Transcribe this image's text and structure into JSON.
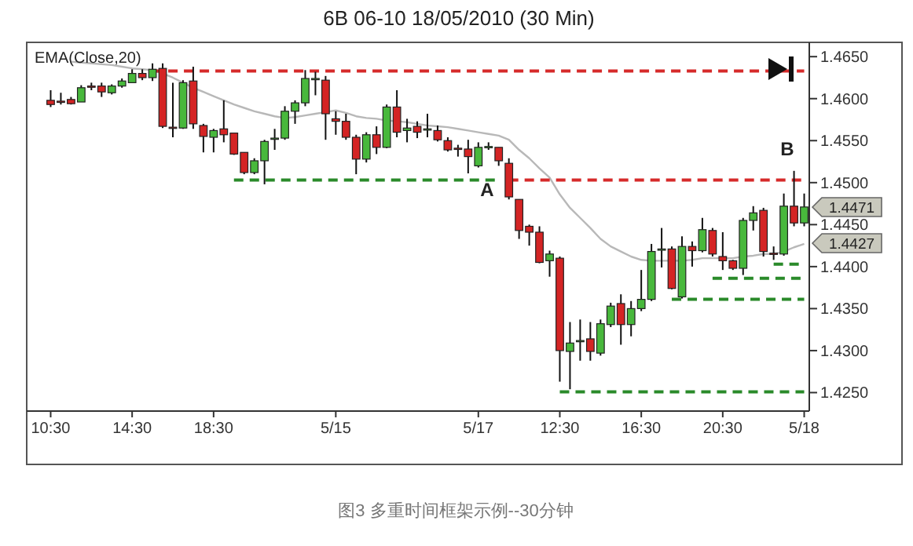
{
  "chart_data": {
    "type": "candlestick",
    "title": "6B 06-10  18/05/2010 (30 Min)",
    "categories": [
      "10:30",
      null,
      null,
      null,
      null,
      null,
      null,
      null,
      "14:30",
      null,
      null,
      null,
      null,
      null,
      null,
      null,
      "18:30",
      null,
      null,
      null,
      null,
      null,
      null,
      null,
      null,
      null,
      null,
      null,
      "5/15",
      null,
      null,
      null,
      null,
      null,
      null,
      null,
      null,
      null,
      null,
      null,
      null,
      null,
      "5/17",
      null,
      null,
      null,
      null,
      null,
      null,
      null,
      "12:30",
      null,
      null,
      null,
      null,
      null,
      null,
      null,
      "16:30",
      null,
      null,
      null,
      null,
      null,
      null,
      null,
      "20:30",
      null,
      null,
      null,
      null,
      null,
      null,
      null,
      "5/18"
    ],
    "ohlc": [
      [
        1.4598,
        1.461,
        1.459,
        1.4593
      ],
      [
        1.4597,
        1.4607,
        1.4593,
        1.4596
      ],
      [
        1.4599,
        1.4602,
        1.4593,
        1.4594
      ],
      [
        1.4596,
        1.4616,
        1.4596,
        1.4613
      ],
      [
        1.4615,
        1.4619,
        1.461,
        1.4614
      ],
      [
        1.4615,
        1.4619,
        1.4602,
        1.4608
      ],
      [
        1.4607,
        1.4617,
        1.4605,
        1.4615
      ],
      [
        1.4615,
        1.4624,
        1.4613,
        1.4621
      ],
      [
        1.4619,
        1.4635,
        1.4619,
        1.463
      ],
      [
        1.463,
        1.4635,
        1.4622,
        1.4625
      ],
      [
        1.4625,
        1.4642,
        1.4621,
        1.4635
      ],
      [
        1.4636,
        1.4642,
        1.4565,
        1.4567
      ],
      [
        1.4566,
        1.4619,
        1.4554,
        1.4565
      ],
      [
        1.4565,
        1.4622,
        1.4564,
        1.4619
      ],
      [
        1.4621,
        1.4638,
        1.4564,
        1.457
      ],
      [
        1.4568,
        1.457,
        1.4536,
        1.4555
      ],
      [
        1.4554,
        1.4564,
        1.4536,
        1.4562
      ],
      [
        1.4564,
        1.4598,
        1.4548,
        1.4557
      ],
      [
        1.4559,
        1.4559,
        1.4533,
        1.4534
      ],
      [
        1.4536,
        1.4536,
        1.451,
        1.4512
      ],
      [
        1.4512,
        1.4529,
        1.451,
        1.4526
      ],
      [
        1.4526,
        1.4551,
        1.4498,
        1.4549
      ],
      [
        1.4552,
        1.4564,
        1.4539,
        1.4553
      ],
      [
        1.4553,
        1.4591,
        1.4551,
        1.4585
      ],
      [
        1.4585,
        1.4598,
        1.457,
        1.4595
      ],
      [
        1.4595,
        1.4634,
        1.4591,
        1.4624
      ],
      [
        1.4623,
        1.4632,
        1.4604,
        1.4624
      ],
      [
        1.4622,
        1.4627,
        1.4551,
        1.4582
      ],
      [
        1.4576,
        1.4585,
        1.4557,
        1.4573
      ],
      [
        1.4573,
        1.4582,
        1.4551,
        1.4554
      ],
      [
        1.4554,
        1.4557,
        1.451,
        1.4528
      ],
      [
        1.4528,
        1.456,
        1.4524,
        1.4557
      ],
      [
        1.4557,
        1.4567,
        1.4534,
        1.4542
      ],
      [
        1.4542,
        1.4593,
        1.4541,
        1.459
      ],
      [
        1.459,
        1.461,
        1.4554,
        1.456
      ],
      [
        1.4562,
        1.4576,
        1.4548,
        1.4565
      ],
      [
        1.4567,
        1.4573,
        1.4553,
        1.456
      ],
      [
        1.4563,
        1.4582,
        1.4554,
        1.4564
      ],
      [
        1.4562,
        1.4568,
        1.4549,
        1.4551
      ],
      [
        1.455,
        1.4554,
        1.4537,
        1.4539
      ],
      [
        1.4541,
        1.4545,
        1.4531,
        1.454
      ],
      [
        1.454,
        1.4551,
        1.4511,
        1.4531
      ],
      [
        1.452,
        1.4548,
        1.4518,
        1.4542
      ],
      [
        1.4542,
        1.4548,
        1.4539,
        1.4543
      ],
      [
        1.4542,
        1.4542,
        1.452,
        1.4526
      ],
      [
        1.4523,
        1.4529,
        1.448,
        1.4483
      ],
      [
        1.448,
        1.448,
        1.4433,
        1.4443
      ],
      [
        1.4448,
        1.445,
        1.4425,
        1.4441
      ],
      [
        1.4441,
        1.4448,
        1.4404,
        1.4405
      ],
      [
        1.4407,
        1.4419,
        1.4388,
        1.4415
      ],
      [
        1.441,
        1.4412,
        1.4263,
        1.43
      ],
      [
        1.4299,
        1.4334,
        1.4254,
        1.4309
      ],
      [
        1.4311,
        1.4337,
        1.4288,
        1.4312
      ],
      [
        1.4314,
        1.4334,
        1.4288,
        1.4299
      ],
      [
        1.4297,
        1.4337,
        1.4294,
        1.4332
      ],
      [
        1.4331,
        1.4357,
        1.4328,
        1.4353
      ],
      [
        1.4356,
        1.4367,
        1.4307,
        1.4331
      ],
      [
        1.4331,
        1.4359,
        1.4317,
        1.435
      ],
      [
        1.435,
        1.4396,
        1.4347,
        1.4361
      ],
      [
        1.4361,
        1.4427,
        1.4359,
        1.4418
      ],
      [
        1.442,
        1.4446,
        1.4399,
        1.4421
      ],
      [
        1.4421,
        1.4424,
        1.4373,
        1.4374
      ],
      [
        1.4364,
        1.4436,
        1.4362,
        1.4424
      ],
      [
        1.4424,
        1.443,
        1.44,
        1.4419
      ],
      [
        1.4419,
        1.4458,
        1.4417,
        1.4444
      ],
      [
        1.4443,
        1.4446,
        1.4412,
        1.4415
      ],
      [
        1.4412,
        1.4441,
        1.4396,
        1.4407
      ],
      [
        1.4407,
        1.4408,
        1.4396,
        1.4398
      ],
      [
        1.4398,
        1.4458,
        1.439,
        1.4455
      ],
      [
        1.4455,
        1.4472,
        1.4443,
        1.4464
      ],
      [
        1.4467,
        1.447,
        1.4412,
        1.4418
      ],
      [
        1.4416,
        1.4424,
        1.4408,
        1.4415
      ],
      [
        1.4415,
        1.4487,
        1.4413,
        1.4472
      ],
      [
        1.4472,
        1.4514,
        1.4448,
        1.4452
      ],
      [
        1.4452,
        1.4487,
        1.4448,
        1.4471
      ]
    ],
    "colors": [
      "#d42424",
      "#d42424",
      "#d42424",
      "#48b83c",
      "#d42424",
      "#d42424",
      "#48b83c",
      "#48b83c",
      "#48b83c",
      "#d42424",
      "#48b83c",
      "#d42424",
      "#d42424",
      "#48b83c",
      "#d42424",
      "#d42424",
      "#48b83c",
      "#d42424",
      "#d42424",
      "#d42424",
      "#48b83c",
      "#48b83c",
      "#48b83c",
      "#48b83c",
      "#48b83c",
      "#48b83c",
      "#48b83c",
      "#d42424",
      "#d42424",
      "#d42424",
      "#d42424",
      "#48b83c",
      "#d42424",
      "#48b83c",
      "#d42424",
      "#48b83c",
      "#d42424",
      "#48b83c",
      "#d42424",
      "#d42424",
      "#d42424",
      "#d42424",
      "#48b83c",
      "#48b83c",
      "#d42424",
      "#d42424",
      "#d42424",
      "#d42424",
      "#d42424",
      "#48b83c",
      "#d42424",
      "#48b83c",
      "#48b83c",
      "#d42424",
      "#48b83c",
      "#48b83c",
      "#d42424",
      "#48b83c",
      "#48b83c",
      "#48b83c",
      "#48b83c",
      "#d42424",
      "#48b83c",
      "#d42424",
      "#48b83c",
      "#d42424",
      "#d42424",
      "#d42424",
      "#48b83c",
      "#48b83c",
      "#d42424",
      "#d42424",
      "#48b83c",
      "#d42424",
      "#48b83c"
    ],
    "series": [
      {
        "name": "EMA(Close,20)",
        "type": "line",
        "color": "#b8b8b8",
        "line_style": "solid",
        "values": [
          null,
          null,
          1.4644,
          1.4643,
          1.4642,
          1.4641,
          1.464,
          1.4638,
          1.4636,
          1.4635,
          1.4634,
          1.463,
          1.4625,
          1.4619,
          1.4613,
          1.4608,
          1.4603,
          1.4598,
          1.4593,
          1.4589,
          1.4585,
          1.4582,
          1.4579,
          1.4577,
          1.4578,
          1.458,
          1.4582,
          1.4584,
          1.4586,
          1.4583,
          1.4579,
          1.4577,
          1.4576,
          1.4574,
          1.4573,
          1.4572,
          1.457,
          1.4568,
          1.4567,
          1.4566,
          1.4564,
          1.4562,
          1.456,
          1.4558,
          1.4556,
          1.4551,
          1.4539,
          1.4529,
          1.4517,
          1.4506,
          1.4486,
          1.447,
          1.4458,
          1.4446,
          1.4433,
          1.4424,
          1.4418,
          1.4412,
          1.4408,
          1.4407,
          1.4407,
          1.4407,
          1.4407,
          1.4408,
          1.441,
          1.441,
          1.441,
          1.441,
          1.4412,
          1.4413,
          1.4415,
          1.4415,
          1.4418,
          1.4423,
          1.4427
        ]
      },
      {
        "type": "line",
        "color": "#d62a2a",
        "line_style": "dashed",
        "values": [
          null,
          null,
          null,
          null,
          null,
          null,
          null,
          null,
          null,
          null,
          1.4633,
          1.4633,
          1.4633,
          1.4633,
          1.4633,
          1.4633,
          1.4633,
          1.4633,
          1.4633,
          1.4633,
          1.4633,
          1.4633,
          1.4633,
          1.4633,
          1.4633,
          1.4633,
          1.4633,
          1.4633,
          1.4633,
          1.4633,
          1.4633,
          1.4633,
          1.4633,
          1.4633,
          1.4633,
          1.4633,
          1.4633,
          1.4633,
          1.4633,
          1.4633,
          1.4633,
          1.4633,
          1.4633,
          1.4633,
          1.4633,
          1.4633,
          1.4633,
          1.4633,
          1.4633,
          1.4633,
          1.4633,
          1.4633,
          1.4633,
          1.4633,
          1.4633,
          1.4633,
          1.4633,
          1.4633,
          1.4633,
          1.4633,
          1.4633,
          1.4633,
          1.4633,
          1.4633,
          1.4633,
          1.4633,
          1.4633,
          1.4633,
          1.4633,
          1.4633,
          1.4633,
          1.4633,
          1.4633,
          1.4633,
          1.4633
        ]
      },
      {
        "type": "line",
        "color": "#2a8a2a",
        "line_style": "dashed",
        "values": [
          null,
          null,
          null,
          null,
          null,
          null,
          null,
          null,
          null,
          null,
          null,
          null,
          null,
          null,
          null,
          null,
          null,
          null,
          1.4503,
          1.4503,
          1.4503,
          1.4503,
          1.4503,
          1.4503,
          1.4503,
          1.4503,
          1.4503,
          1.4503,
          1.4503,
          1.4503,
          1.4503,
          1.4503,
          1.4503,
          1.4503,
          1.4503,
          1.4503,
          1.4503,
          1.4503,
          1.4503,
          1.4503,
          1.4503,
          1.4503,
          1.4503,
          1.4503,
          1.4503,
          null,
          null,
          null,
          null,
          null,
          null,
          null,
          null,
          null,
          null,
          null,
          null,
          null,
          null,
          null,
          null,
          null,
          null,
          null,
          null,
          null,
          null,
          null,
          null,
          null,
          null,
          null,
          null,
          null,
          null
        ]
      },
      {
        "type": "line",
        "color": "#d62a2a",
        "line_style": "dashed",
        "values": [
          null,
          null,
          null,
          null,
          null,
          null,
          null,
          null,
          null,
          null,
          null,
          null,
          null,
          null,
          null,
          null,
          null,
          null,
          null,
          null,
          null,
          null,
          null,
          null,
          null,
          null,
          null,
          null,
          null,
          null,
          null,
          null,
          null,
          null,
          null,
          null,
          null,
          null,
          null,
          null,
          null,
          null,
          null,
          null,
          null,
          1.4503,
          1.4503,
          1.4503,
          1.4503,
          1.4503,
          1.4503,
          1.4503,
          1.4503,
          1.4503,
          1.4503,
          1.4503,
          1.4503,
          1.4503,
          1.4503,
          1.4503,
          1.4503,
          1.4503,
          1.4503,
          1.4503,
          1.4503,
          1.4503,
          1.4503,
          1.4503,
          1.4503,
          1.4503,
          1.4503,
          1.4503,
          1.4503,
          1.4503,
          1.4503
        ]
      },
      {
        "type": "line",
        "color": "#2a8a2a",
        "line_style": "dashed",
        "values": [
          null,
          null,
          null,
          null,
          null,
          null,
          null,
          null,
          null,
          null,
          null,
          null,
          null,
          null,
          null,
          null,
          null,
          null,
          null,
          null,
          null,
          null,
          null,
          null,
          null,
          null,
          null,
          null,
          null,
          null,
          null,
          null,
          null,
          null,
          null,
          null,
          null,
          null,
          null,
          null,
          null,
          null,
          null,
          null,
          null,
          null,
          null,
          null,
          null,
          null,
          1.4251,
          1.4251,
          1.4251,
          1.4251,
          1.4251,
          1.4251,
          1.4251,
          1.4251,
          1.4251,
          1.4251,
          1.4251,
          1.4251,
          1.4251,
          1.4251,
          1.4251,
          1.4251,
          1.4251,
          1.4251,
          1.4251,
          1.4251,
          1.4251,
          1.4251,
          1.4251,
          1.4251,
          1.4251
        ]
      },
      {
        "type": "line",
        "color": "#2a8a2a",
        "line_style": "dashed",
        "values": [
          null,
          null,
          null,
          null,
          null,
          null,
          null,
          null,
          null,
          null,
          null,
          null,
          null,
          null,
          null,
          null,
          null,
          null,
          null,
          null,
          null,
          null,
          null,
          null,
          null,
          null,
          null,
          null,
          null,
          null,
          null,
          null,
          null,
          null,
          null,
          null,
          null,
          null,
          null,
          null,
          null,
          null,
          null,
          null,
          null,
          null,
          null,
          null,
          null,
          null,
          null,
          null,
          null,
          null,
          null,
          null,
          null,
          null,
          null,
          null,
          null,
          1.4361,
          1.4361,
          1.4361,
          1.4361,
          1.4361,
          1.4361,
          1.4361,
          1.4361,
          1.4361,
          1.4361,
          1.4361,
          1.4361,
          1.4361,
          1.4361
        ]
      },
      {
        "type": "line",
        "color": "#2a8a2a",
        "line_style": "dashed",
        "values": [
          null,
          null,
          null,
          null,
          null,
          null,
          null,
          null,
          null,
          null,
          null,
          null,
          null,
          null,
          null,
          null,
          null,
          null,
          null,
          null,
          null,
          null,
          null,
          null,
          null,
          null,
          null,
          null,
          null,
          null,
          null,
          null,
          null,
          null,
          null,
          null,
          null,
          null,
          null,
          null,
          null,
          null,
          null,
          null,
          null,
          null,
          null,
          null,
          null,
          null,
          null,
          null,
          null,
          null,
          null,
          null,
          null,
          null,
          null,
          null,
          null,
          null,
          null,
          null,
          null,
          1.4386,
          1.4386,
          1.4386,
          1.4386,
          1.4386,
          1.4386,
          1.4386,
          1.4386,
          1.4386,
          1.4386
        ]
      },
      {
        "type": "line",
        "color": "#2a8a2a",
        "line_style": "dashed",
        "values": [
          null,
          null,
          null,
          null,
          null,
          null,
          null,
          null,
          null,
          null,
          null,
          null,
          null,
          null,
          null,
          null,
          null,
          null,
          null,
          null,
          null,
          null,
          null,
          null,
          null,
          null,
          null,
          null,
          null,
          null,
          null,
          null,
          null,
          null,
          null,
          null,
          null,
          null,
          null,
          null,
          null,
          null,
          null,
          null,
          null,
          null,
          null,
          null,
          null,
          null,
          null,
          null,
          null,
          null,
          null,
          null,
          null,
          null,
          null,
          null,
          null,
          null,
          null,
          null,
          null,
          null,
          null,
          null,
          null,
          null,
          null,
          1.4403,
          1.4403,
          1.4403,
          1.4403
        ]
      }
    ],
    "ylim": [
      1.4228,
      1.4667
    ],
    "yticks": [
      {
        "value": 1.425,
        "label": "1.4250"
      },
      {
        "value": 1.43,
        "label": "1.4300"
      },
      {
        "value": 1.435,
        "label": "1.4350"
      },
      {
        "value": 1.44,
        "label": "1.4400"
      },
      {
        "value": 1.445,
        "label": "1.4450"
      },
      {
        "value": 1.45,
        "label": "1.4500"
      },
      {
        "value": 1.455,
        "label": "1.4550"
      },
      {
        "value": 1.46,
        "label": "1.4600"
      },
      {
        "value": 1.465,
        "label": "1.4650"
      }
    ],
    "grid": false,
    "legend": "top left",
    "annotations": [
      "A",
      "B",
      "1.4471",
      "1.4427",
      "图3  多重时间框架示例--30分钟"
    ]
  }
}
